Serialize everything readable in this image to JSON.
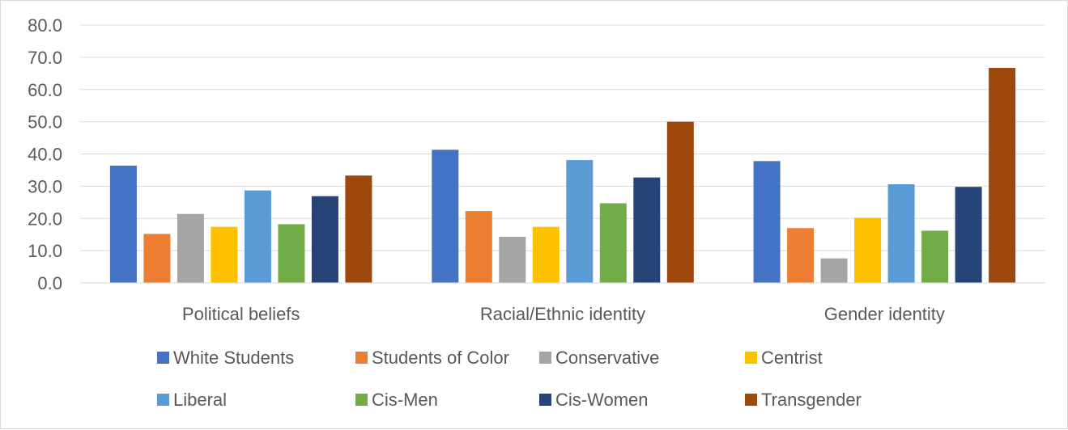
{
  "chart_data": {
    "type": "bar",
    "categories": [
      "Political beliefs",
      "Racial/Ethnic identity",
      "Gender identity"
    ],
    "ylim": [
      0,
      80
    ],
    "yticks": [
      0,
      10,
      20,
      30,
      40,
      50,
      60,
      70,
      80
    ],
    "ytick_labels": [
      "0.0",
      "10.0",
      "20.0",
      "30.0",
      "40.0",
      "50.0",
      "60.0",
      "70.0",
      "80.0"
    ],
    "grid": true,
    "legend_position": "bottom",
    "series": [
      {
        "name": "White Students",
        "color": "#4472C4",
        "values": [
          36.4,
          41.3,
          37.8
        ]
      },
      {
        "name": "Students of Color",
        "color": "#ED7D31",
        "values": [
          15.2,
          22.3,
          17.0
        ]
      },
      {
        "name": "Conservative",
        "color": "#A5A5A5",
        "values": [
          21.4,
          14.3,
          7.6
        ]
      },
      {
        "name": "Centrist",
        "color": "#FFC000",
        "values": [
          17.4,
          17.4,
          20.2
        ]
      },
      {
        "name": "Liberal",
        "color": "#5B9BD5",
        "values": [
          28.7,
          38.1,
          30.6
        ]
      },
      {
        "name": "Cis-Men",
        "color": "#70AD47",
        "values": [
          18.2,
          24.7,
          16.2
        ]
      },
      {
        "name": "Cis-Women",
        "color": "#264478",
        "values": [
          26.9,
          32.7,
          29.8
        ]
      },
      {
        "name": "Transgender",
        "color": "#9E480E",
        "values": [
          33.3,
          50.0,
          66.7
        ]
      }
    ]
  }
}
